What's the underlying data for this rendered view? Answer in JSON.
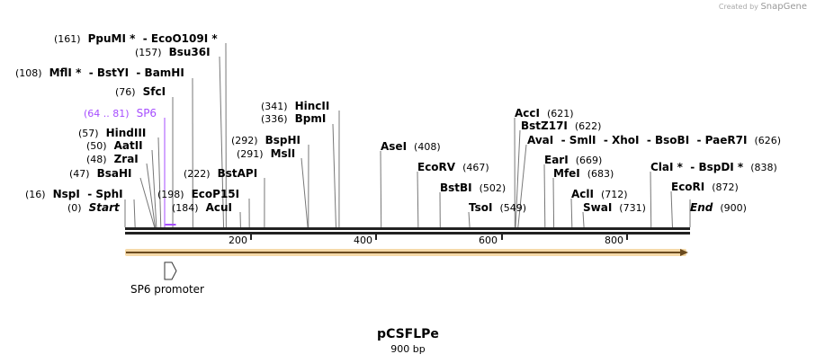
{
  "map": {
    "name": "pCSFLPe",
    "length_label": "900 bp",
    "length": 900
  },
  "branding": {
    "created_by": "Created by",
    "brand": "SnapGene"
  },
  "ticks": [
    "200",
    "400",
    "600",
    "800"
  ],
  "feature": {
    "name": "SP6 promoter",
    "range": "(64 .. 81)",
    "label": "SP6",
    "start": 64,
    "end": 81,
    "color": "#a64dff"
  },
  "colors": {
    "backbone": "#222222",
    "orf": "#f5c97a",
    "orf_line": "#6b4b1f"
  },
  "sites": [
    {
      "pos": 161,
      "pos_label": "(161)",
      "name": "PpuMI *  - EcoO109I *"
    },
    {
      "pos": 157,
      "pos_label": "(157)",
      "name": "Bsu36I"
    },
    {
      "pos": 108,
      "pos_label": "(108)",
      "name": "MflI *  - BstYI  - BamHI"
    },
    {
      "pos": 76,
      "pos_label": "(76)",
      "name": "SfcI"
    },
    {
      "pos": 57,
      "pos_label": "(57)",
      "name": "HindIII"
    },
    {
      "pos": 50,
      "pos_label": "(50)",
      "name": "AatII"
    },
    {
      "pos": 48,
      "pos_label": "(48)",
      "name": "ZraI"
    },
    {
      "pos": 47,
      "pos_label": "(47)",
      "name": "BsaHI"
    },
    {
      "pos": 16,
      "pos_label": "(16)",
      "name": "NspI  - SphI"
    },
    {
      "pos": 0,
      "pos_label": "(0)",
      "name": "Start",
      "italic": true
    },
    {
      "pos": 198,
      "pos_label": "(198)",
      "name": "EcoP15I"
    },
    {
      "pos": 184,
      "pos_label": "(184)",
      "name": "AcuI"
    },
    {
      "pos": 222,
      "pos_label": "(222)",
      "name": "BstAPI"
    },
    {
      "pos": 292,
      "pos_label": "(292)",
      "name": "BspHI"
    },
    {
      "pos": 291,
      "pos_label": "(291)",
      "name": "MslI"
    },
    {
      "pos": 341,
      "pos_label": "(341)",
      "name": "HincII"
    },
    {
      "pos": 336,
      "pos_label": "(336)",
      "name": "BpmI"
    },
    {
      "pos": 408,
      "pos_label": "(408)",
      "name": "AseI"
    },
    {
      "pos": 467,
      "pos_label": "(467)",
      "name": "EcoRV"
    },
    {
      "pos": 502,
      "pos_label": "(502)",
      "name": "BstBI"
    },
    {
      "pos": 549,
      "pos_label": "(549)",
      "name": "TsoI"
    },
    {
      "pos": 621,
      "pos_label": "(621)",
      "name": "AccI"
    },
    {
      "pos": 622,
      "pos_label": "(622)",
      "name": "BstZ17I"
    },
    {
      "pos": 626,
      "pos_label": "(626)",
      "name": "AvaI  - SmlI  - XhoI  - BsoBI  - PaeR7I"
    },
    {
      "pos": 669,
      "pos_label": "(669)",
      "name": "EarI"
    },
    {
      "pos": 683,
      "pos_label": "(683)",
      "name": "MfeI"
    },
    {
      "pos": 712,
      "pos_label": "(712)",
      "name": "AclI"
    },
    {
      "pos": 731,
      "pos_label": "(731)",
      "name": "SwaI"
    },
    {
      "pos": 838,
      "pos_label": "(838)",
      "name": "ClaI *  - BspDI *"
    },
    {
      "pos": 872,
      "pos_label": "(872)",
      "name": "EcoRI"
    },
    {
      "pos": 900,
      "pos_label": "(900)",
      "name": "End",
      "italic": true
    }
  ]
}
